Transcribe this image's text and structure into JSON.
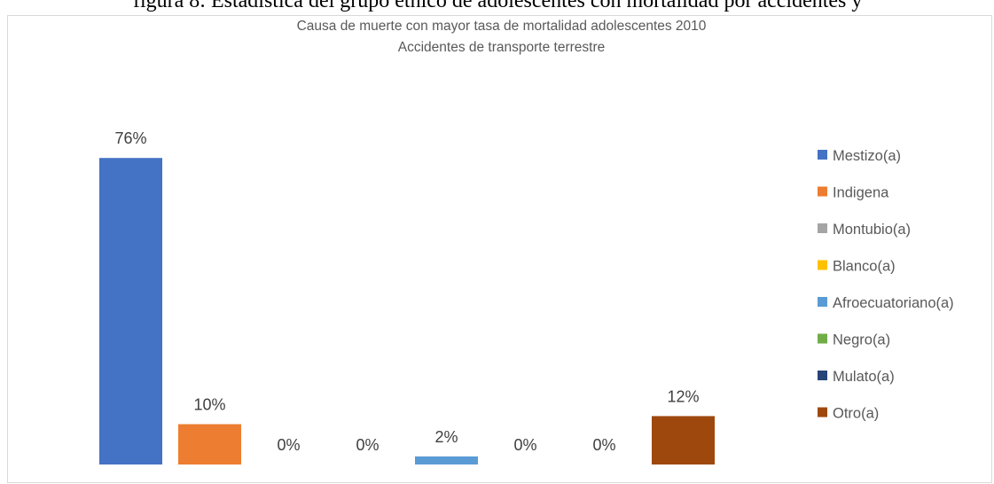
{
  "top_caption": "figura 8: Estadística del grupo étnico de adolescentes con mortalidad por accidentes y",
  "chart_data": {
    "type": "bar",
    "title": "Causa de muerte con mayor tasa de mortalidad adolescentes 2010",
    "subtitle": "Accidentes de transporte terrestre",
    "value_suffix": "%",
    "ylim": [
      0,
      100
    ],
    "legend_position": "right",
    "grid": false,
    "series": [
      {
        "name": "Mestizo(a)",
        "value": 76,
        "color": "#4472c4"
      },
      {
        "name": "Indigena",
        "value": 10,
        "color": "#ed7d31"
      },
      {
        "name": "Montubio(a)",
        "value": 0,
        "color": "#a5a5a5"
      },
      {
        "name": "Blanco(a)",
        "value": 0,
        "color": "#ffc000"
      },
      {
        "name": "Afroecuatoriano(a)",
        "value": 2,
        "color": "#5b9bd5"
      },
      {
        "name": "Negro(a)",
        "value": 0,
        "color": "#70ad47"
      },
      {
        "name": "Mulato(a)",
        "value": 0,
        "color": "#264478"
      },
      {
        "name": "Otro(a)",
        "value": 12,
        "color": "#9e480e"
      }
    ]
  }
}
